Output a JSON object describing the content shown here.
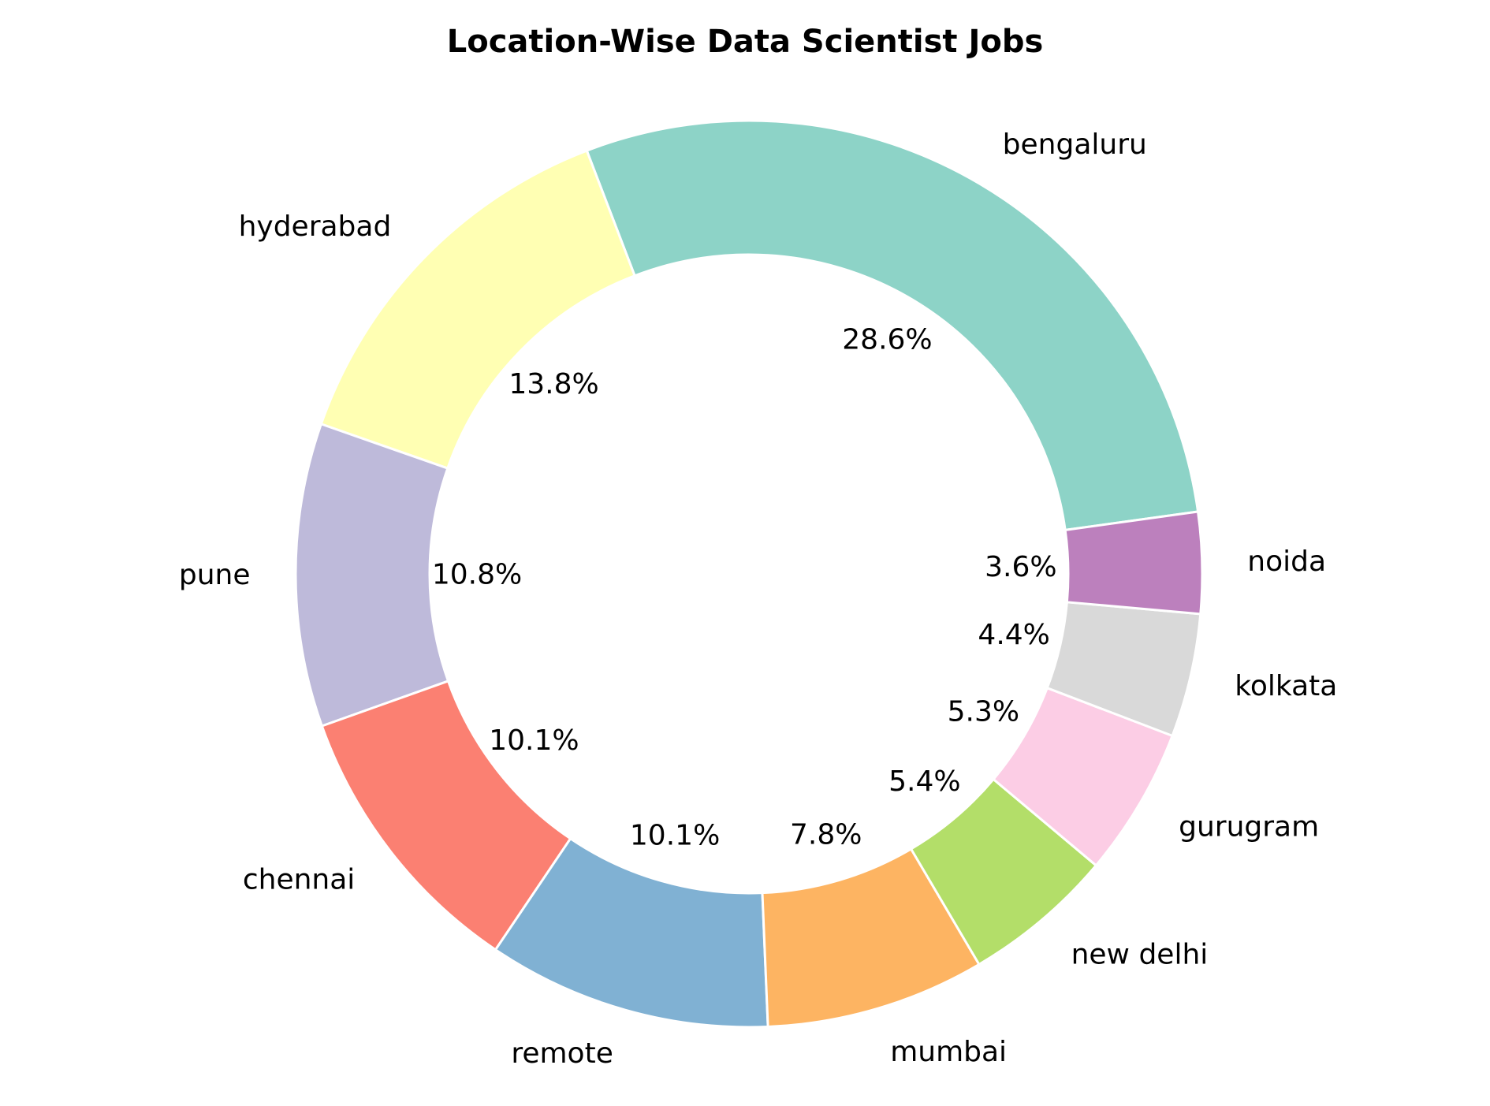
{
  "chart_data": {
    "type": "pie",
    "style": "donut",
    "title": "Location-Wise Data Scientist Jobs",
    "categories": [
      "bengaluru",
      "hyderabad",
      "pune",
      "chennai",
      "remote",
      "mumbai",
      "new delhi",
      "gurugram",
      "kolkata",
      "noida"
    ],
    "values": [
      28.6,
      13.8,
      10.8,
      10.1,
      10.1,
      7.8,
      5.4,
      5.3,
      4.4,
      3.6
    ],
    "labels": [
      "28.6%",
      "13.8%",
      "10.8%",
      "10.1%",
      "10.1%",
      "7.8%",
      "5.4%",
      "5.3%",
      "4.4%",
      "3.6%"
    ],
    "colors": [
      "#8dd3c7",
      "#ffffb3",
      "#bebada",
      "#fb8072",
      "#80b1d3",
      "#fdb462",
      "#b3de69",
      "#fccde5",
      "#d9d9d9",
      "#bc80bd"
    ],
    "start_angle_deg": 7.9,
    "direction": "counterclockwise",
    "edge_color": "#ffffff"
  }
}
